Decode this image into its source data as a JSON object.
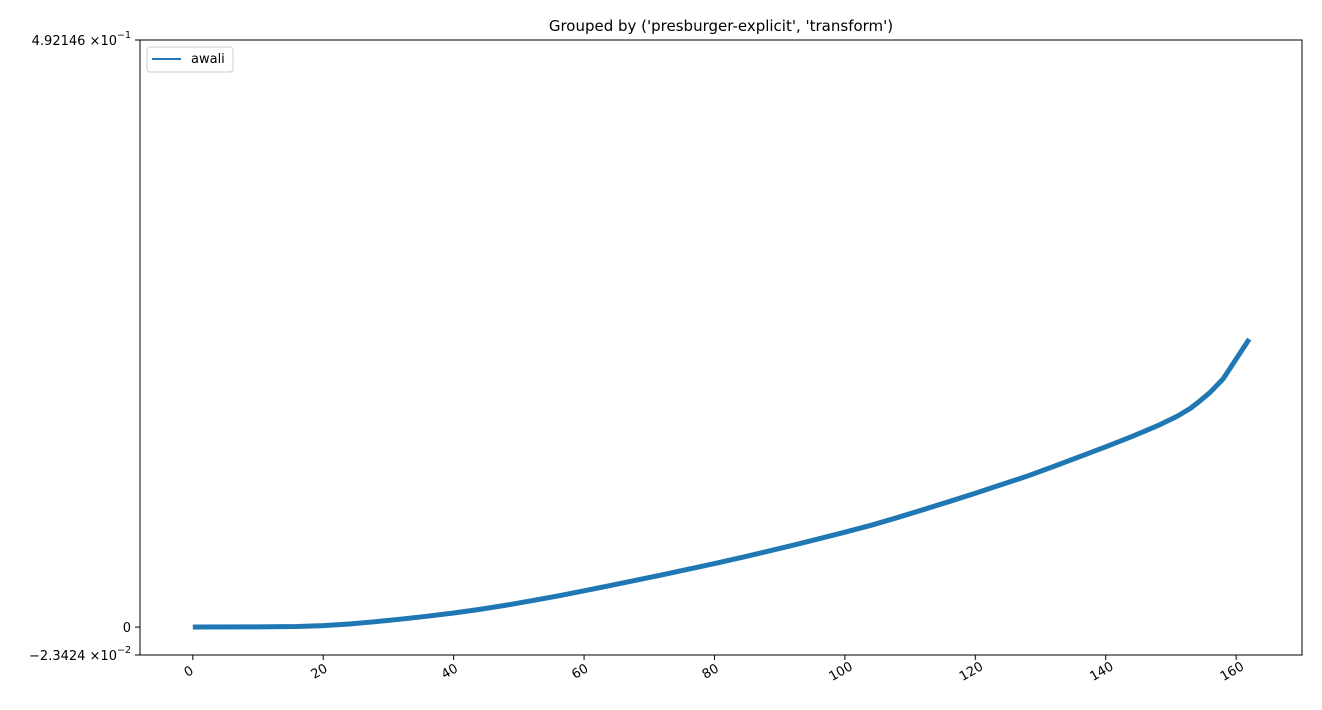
{
  "chart_data": {
    "type": "line",
    "title": "Grouped by ('presburger-explicit', 'transform')",
    "xlabel": "",
    "ylabel": "",
    "xlim": [
      -8.1,
      170.1
    ],
    "ylim": [
      -0.023424,
      0.492146
    ],
    "x_ticks": [
      0,
      20,
      40,
      60,
      80,
      100,
      120,
      140,
      160
    ],
    "x_tick_rotation_deg": 30,
    "y_ticks": [
      {
        "value": 0.492146,
        "mantissa": "4.92146",
        "base": "×10",
        "exp": "−1"
      },
      {
        "value": 0,
        "mantissa": "0",
        "base": "",
        "exp": ""
      },
      {
        "value": -0.023424,
        "mantissa": "−2.3424",
        "base": "×10",
        "exp": "−2"
      }
    ],
    "grid": false,
    "legend": {
      "placement": "upper-left",
      "entries": [
        "awali"
      ]
    },
    "series": [
      {
        "name": "awali",
        "color": "#1f77b4",
        "x": [
          0,
          10,
          16,
          20,
          24,
          28,
          32,
          36,
          40,
          44,
          48,
          52,
          56,
          60,
          64,
          68,
          72,
          76,
          80,
          84,
          88,
          92,
          96,
          100,
          104,
          108,
          112,
          116,
          120,
          124,
          128,
          132,
          136,
          140,
          144,
          148,
          151,
          153,
          154,
          156,
          158,
          160,
          162
        ],
        "y": [
          0.0,
          0.0002,
          0.0005,
          0.0012,
          0.0026,
          0.0045,
          0.0067,
          0.0091,
          0.0118,
          0.0148,
          0.0183,
          0.0221,
          0.0261,
          0.0304,
          0.0348,
          0.0393,
          0.0438,
          0.0485,
          0.0532,
          0.0582,
          0.0633,
          0.0685,
          0.074,
          0.0795,
          0.0853,
          0.0917,
          0.0984,
          0.1052,
          0.1122,
          0.1194,
          0.1266,
          0.1346,
          0.1428,
          0.1511,
          0.1597,
          0.1689,
          0.1768,
          0.1834,
          0.1876,
          0.1967,
          0.2081,
          0.2247,
          0.2414
        ]
      }
    ]
  }
}
